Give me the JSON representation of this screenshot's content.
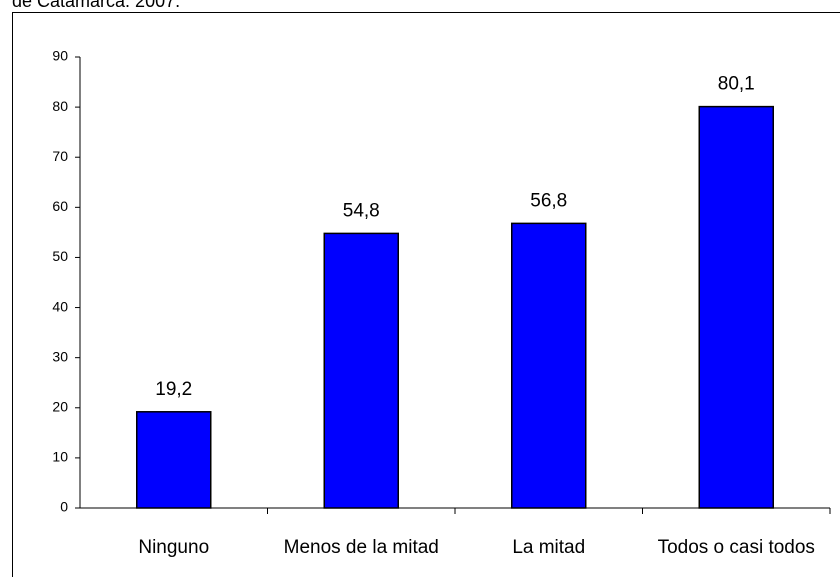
{
  "chart_data": {
    "type": "bar",
    "title": "de Catamarca. 2007.",
    "categories": [
      "Ninguno",
      "Menos de la mitad",
      "La mitad",
      "Todos o casi todos"
    ],
    "values": [
      19.2,
      54.8,
      56.8,
      80.1
    ],
    "value_labels": [
      "19,2",
      "54,8",
      "56,8",
      "80,1"
    ],
    "color": "#0000ff",
    "ylim": [
      0,
      90
    ],
    "yticks": [
      0,
      10,
      20,
      30,
      40,
      50,
      60,
      70,
      80,
      90
    ],
    "grid": false
  }
}
